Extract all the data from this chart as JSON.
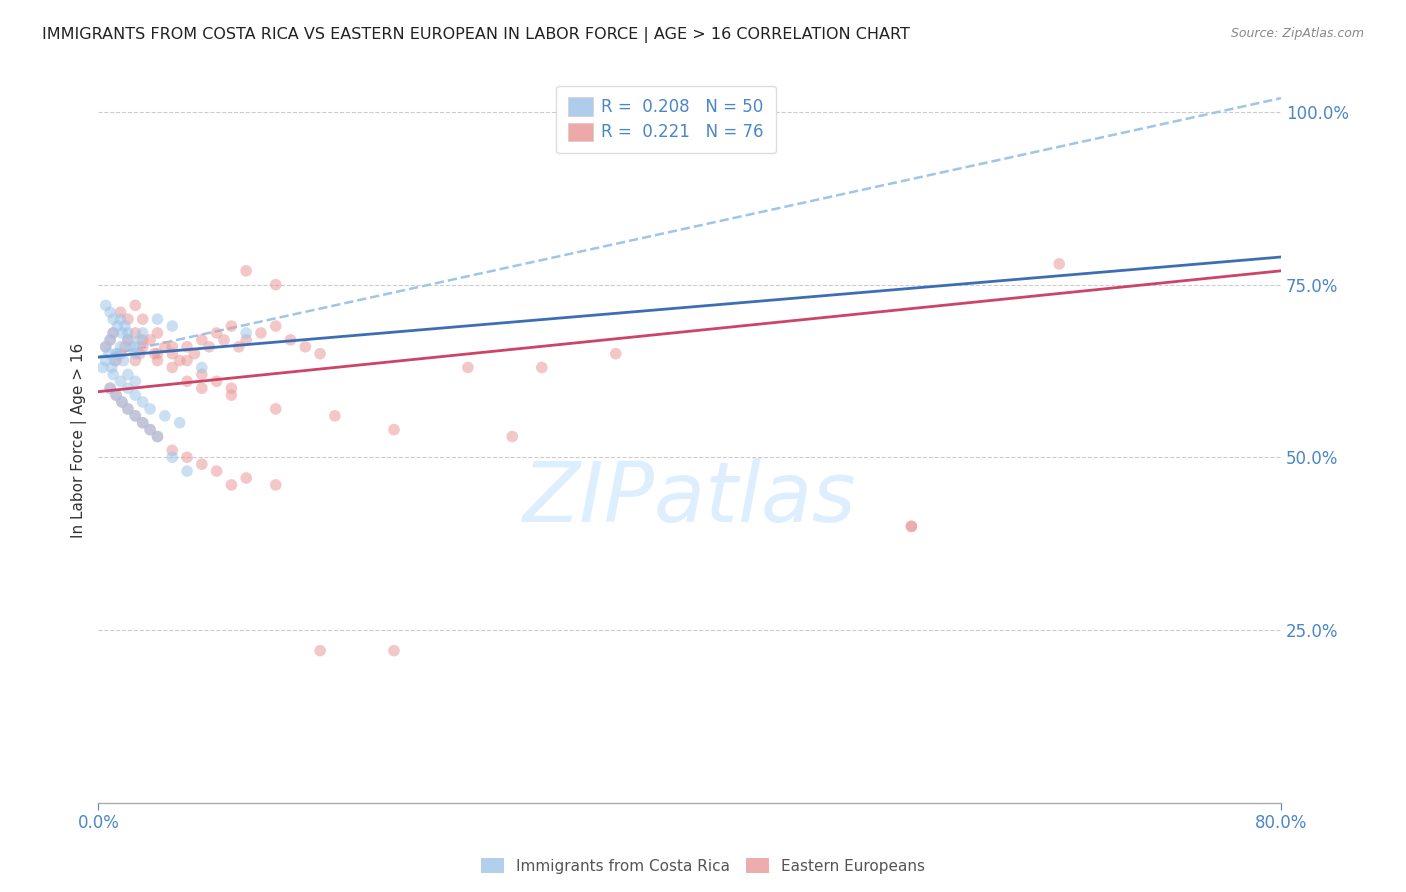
{
  "title": "IMMIGRANTS FROM COSTA RICA VS EASTERN EUROPEAN IN LABOR FORCE | AGE > 16 CORRELATION CHART",
  "source": "Source: ZipAtlas.com",
  "ylabel": "In Labor Force | Age > 16",
  "y_tick_labels": [
    "100.0%",
    "75.0%",
    "50.0%",
    "25.0%"
  ],
  "y_tick_values": [
    1.0,
    0.75,
    0.5,
    0.25
  ],
  "xlim": [
    0.0,
    0.8
  ],
  "ylim": [
    0.0,
    1.05
  ],
  "legend_label_blue": "R =  0.208   N = 50",
  "legend_label_pink": "R =  0.221   N = 76",
  "blue_scatter_x": [
    0.005,
    0.008,
    0.01,
    0.012,
    0.015,
    0.018,
    0.02,
    0.022,
    0.025,
    0.028,
    0.003,
    0.005,
    0.007,
    0.009,
    0.011,
    0.013,
    0.015,
    0.017,
    0.02,
    0.025,
    0.005,
    0.008,
    0.01,
    0.013,
    0.016,
    0.02,
    0.025,
    0.03,
    0.04,
    0.05,
    0.008,
    0.012,
    0.016,
    0.02,
    0.025,
    0.03,
    0.035,
    0.04,
    0.05,
    0.06,
    0.01,
    0.015,
    0.02,
    0.025,
    0.03,
    0.035,
    0.045,
    0.055,
    0.07,
    0.1
  ],
  "blue_scatter_y": [
    0.66,
    0.67,
    0.68,
    0.65,
    0.7,
    0.69,
    0.68,
    0.66,
    0.65,
    0.67,
    0.63,
    0.64,
    0.65,
    0.63,
    0.64,
    0.65,
    0.66,
    0.64,
    0.62,
    0.61,
    0.72,
    0.71,
    0.7,
    0.69,
    0.68,
    0.67,
    0.66,
    0.68,
    0.7,
    0.69,
    0.6,
    0.59,
    0.58,
    0.57,
    0.56,
    0.55,
    0.54,
    0.53,
    0.5,
    0.48,
    0.62,
    0.61,
    0.6,
    0.59,
    0.58,
    0.57,
    0.56,
    0.55,
    0.63,
    0.68
  ],
  "pink_scatter_x": [
    0.005,
    0.008,
    0.01,
    0.012,
    0.015,
    0.018,
    0.02,
    0.025,
    0.028,
    0.03,
    0.035,
    0.038,
    0.04,
    0.045,
    0.05,
    0.055,
    0.06,
    0.065,
    0.07,
    0.075,
    0.08,
    0.085,
    0.09,
    0.095,
    0.1,
    0.11,
    0.12,
    0.13,
    0.14,
    0.15,
    0.008,
    0.012,
    0.016,
    0.02,
    0.025,
    0.03,
    0.035,
    0.04,
    0.05,
    0.06,
    0.07,
    0.08,
    0.09,
    0.1,
    0.12,
    0.015,
    0.02,
    0.025,
    0.03,
    0.04,
    0.05,
    0.06,
    0.07,
    0.09,
    0.12,
    0.16,
    0.2,
    0.28,
    0.55,
    0.65,
    0.025,
    0.03,
    0.04,
    0.05,
    0.06,
    0.07,
    0.08,
    0.09,
    0.1,
    0.12,
    0.15,
    0.2,
    0.25,
    0.3,
    0.35,
    0.55
  ],
  "pink_scatter_y": [
    0.66,
    0.67,
    0.68,
    0.64,
    0.65,
    0.66,
    0.67,
    0.64,
    0.65,
    0.66,
    0.67,
    0.65,
    0.64,
    0.66,
    0.65,
    0.64,
    0.66,
    0.65,
    0.67,
    0.66,
    0.68,
    0.67,
    0.69,
    0.66,
    0.67,
    0.68,
    0.69,
    0.67,
    0.66,
    0.65,
    0.6,
    0.59,
    0.58,
    0.57,
    0.56,
    0.55,
    0.54,
    0.53,
    0.51,
    0.5,
    0.49,
    0.48,
    0.46,
    0.47,
    0.46,
    0.71,
    0.7,
    0.68,
    0.67,
    0.65,
    0.63,
    0.61,
    0.6,
    0.59,
    0.57,
    0.56,
    0.54,
    0.53,
    0.4,
    0.78,
    0.72,
    0.7,
    0.68,
    0.66,
    0.64,
    0.62,
    0.61,
    0.6,
    0.77,
    0.75,
    0.22,
    0.22,
    0.63,
    0.63,
    0.65,
    0.4
  ],
  "blue_line_x": [
    0.0,
    0.8
  ],
  "blue_line_y": [
    0.645,
    0.79
  ],
  "pink_line_x": [
    0.0,
    0.8
  ],
  "pink_line_y": [
    0.595,
    0.77
  ],
  "dashed_line_x": [
    0.0,
    0.8
  ],
  "dashed_line_y": [
    0.645,
    1.02
  ],
  "blue_color": "#9fc5e8",
  "pink_color": "#ea9999",
  "blue_line_color": "#3d6eb5",
  "pink_line_color": "#cc4466",
  "dashed_line_color": "#9fc5e8",
  "watermark_color": "#ddeeff",
  "background_color": "#ffffff",
  "grid_color": "#cccccc",
  "tick_label_color": "#4a86c8",
  "title_color": "#222222",
  "title_fontsize": 11.5,
  "ylabel_fontsize": 11,
  "legend_fontsize": 12,
  "scatter_size": 70,
  "scatter_alpha": 0.55
}
